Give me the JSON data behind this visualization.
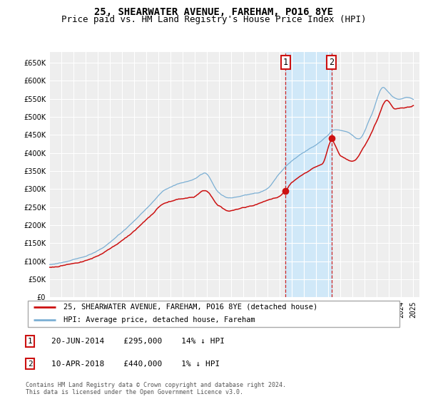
{
  "title": "25, SHEARWATER AVENUE, FAREHAM, PO16 8YE",
  "subtitle": "Price paid vs. HM Land Registry's House Price Index (HPI)",
  "ylim": [
    0,
    680000
  ],
  "yticks": [
    0,
    50000,
    100000,
    150000,
    200000,
    250000,
    300000,
    350000,
    400000,
    450000,
    500000,
    550000,
    600000,
    650000
  ],
  "xlim_start": 1995,
  "xlim_end": 2025.5,
  "sale1_date": 2014.47,
  "sale1_price": 295000,
  "sale1_label": "1",
  "sale1_note": "20-JUN-2014    £295,000    14% ↓ HPI",
  "sale2_date": 2018.27,
  "sale2_price": 440000,
  "sale2_label": "2",
  "sale2_note": "10-APR-2018    £440,000    1% ↓ HPI",
  "hpi_color": "#7bafd4",
  "price_color": "#cc1111",
  "plot_bg": "#eeeeee",
  "grid_color": "#ffffff",
  "shade_color": "#d0e8f8",
  "legend1": "25, SHEARWATER AVENUE, FAREHAM, PO16 8YE (detached house)",
  "legend2": "HPI: Average price, detached house, Fareham",
  "footer": "Contains HM Land Registry data © Crown copyright and database right 2024.\nThis data is licensed under the Open Government Licence v3.0.",
  "title_fontsize": 10,
  "subtitle_fontsize": 9,
  "tick_fontsize": 7
}
